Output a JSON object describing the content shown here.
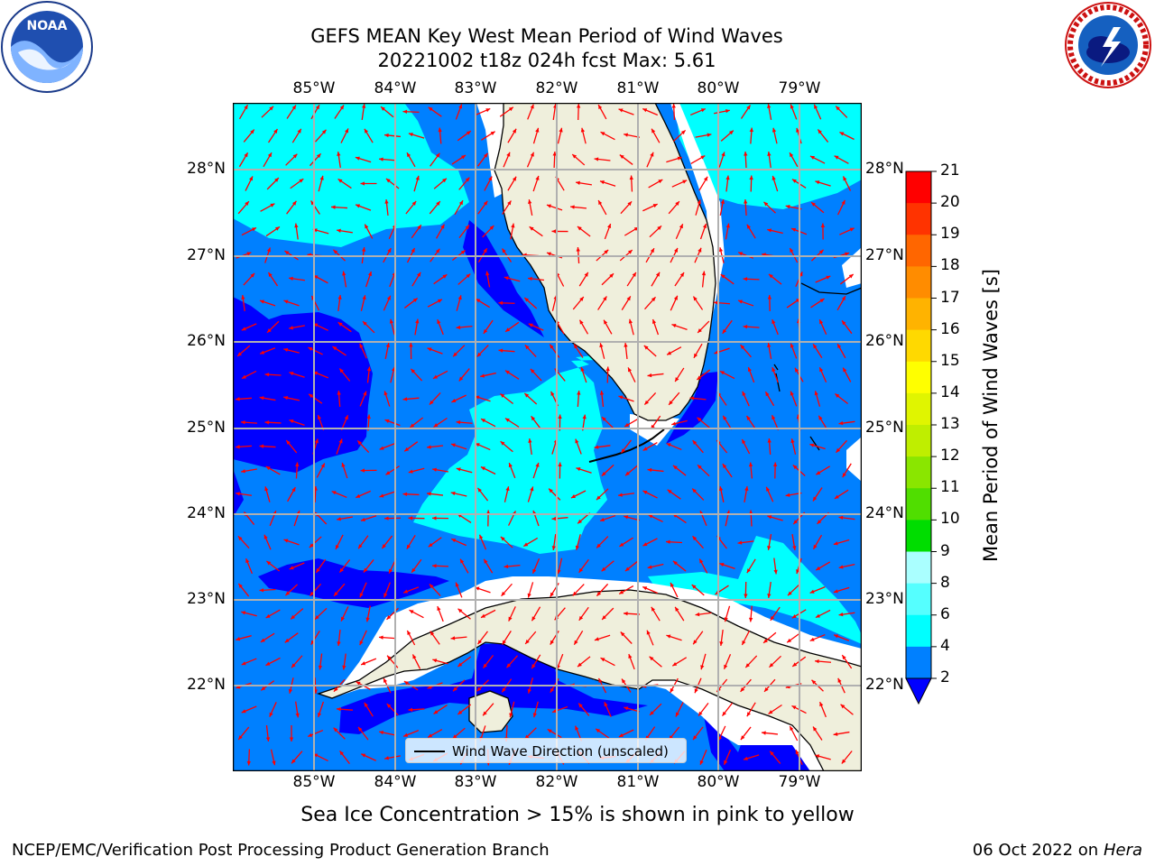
{
  "title_line1": "GEFS MEAN Key West Mean Period of Wind Waves",
  "title_line2": "20221002 t18z 024h fcst   Max: 5.61",
  "lon_labels": [
    "85°W",
    "84°W",
    "83°W",
    "82°W",
    "81°W",
    "80°W",
    "79°W"
  ],
  "lat_labels": [
    "28°N",
    "27°N",
    "26°N",
    "25°N",
    "24°N",
    "23°N",
    "22°N"
  ],
  "legend_label": "Wind Wave Direction (unscaled)",
  "colorbar": {
    "label": "Mean Period of Wind Waves [s]",
    "ticks": [
      "21",
      "20",
      "19",
      "18",
      "17",
      "16",
      "15",
      "14",
      "13",
      "12",
      "11",
      "10",
      "9",
      "8",
      "6",
      "4",
      "2"
    ],
    "colors": [
      "#ff0000",
      "#ff2a00",
      "#ff5500",
      "#ff8000",
      "#ffaa00",
      "#ffd400",
      "#ffff00",
      "#e6f500",
      "#c8ee00",
      "#9ae600",
      "#5fde00",
      "#00dd00",
      "#33ee66",
      "#66ff99",
      "#aaffff",
      "#66ffff",
      "#00ffff",
      "#0080ff",
      "#0000ff"
    ]
  },
  "sea_ice_note": "Sea Ice Concentration > 15% is shown in pink to yellow",
  "footer_left": "NCEP/EMC/Verification Post Processing Product Generation Branch",
  "footer_right_prefix": "06 Oct 2022 on ",
  "footer_right_host": "Hera",
  "logo_left": "NOAA",
  "logo_right_text": "NATIONAL WEATHER SERVICE",
  "colors": {
    "ocean_deep": "#0000ff",
    "ocean_mid": "#0080ff",
    "ocean_light": "#00ffff",
    "land": "#efefdc",
    "arrow": "#ff0000",
    "grid": "#b0b0b0"
  }
}
